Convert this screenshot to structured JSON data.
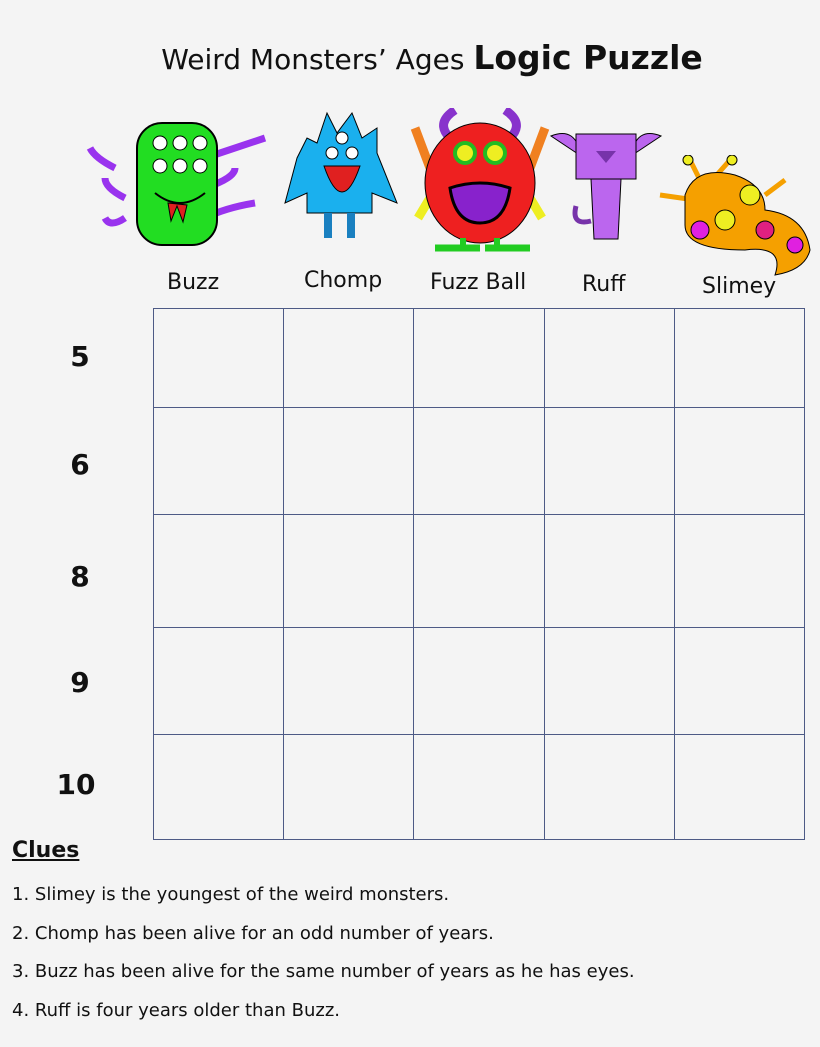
{
  "title": {
    "regular": "Weird Monsters’ Ages",
    "bold": "Logic Puzzle"
  },
  "monsters": [
    "Buzz",
    "Chomp",
    "Fuzz Ball",
    "Ruff",
    "Slimey"
  ],
  "ages": [
    "5",
    "6",
    "8",
    "9",
    "10"
  ],
  "clues_heading": "Clues",
  "clues": [
    "1. Slimey is the youngest of the weird monsters.",
    "2. Chomp has been alive for an odd number of years.",
    "3. Buzz has been alive for the same number of years as he has eyes.",
    "4. Ruff is four years older than Buzz."
  ],
  "colors": {
    "grid": "#4d5a85",
    "buzz": "#22dd22",
    "chomp": "#1ab0ee",
    "fuzzball": "#ee2020",
    "ruff": "#bb66ee",
    "slimey": "#f5a000"
  }
}
